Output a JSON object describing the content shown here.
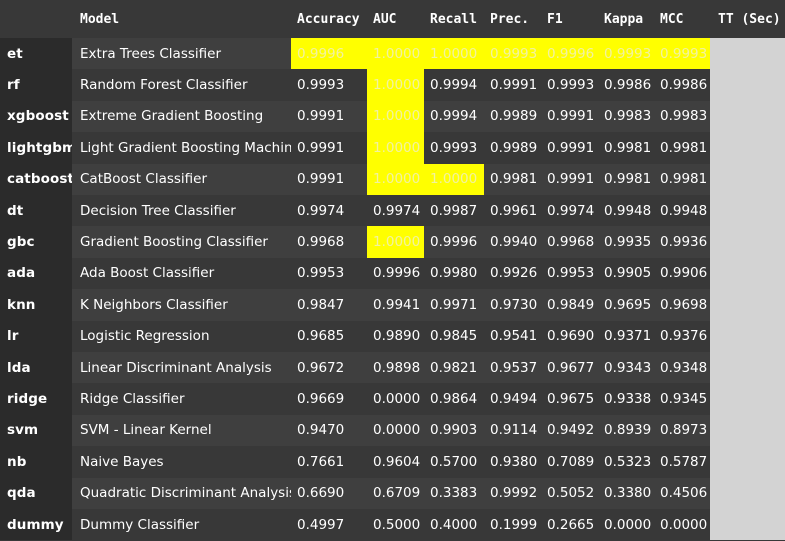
{
  "table": {
    "columns": [
      "Model",
      "Accuracy",
      "AUC",
      "Recall",
      "Prec.",
      "F1",
      "Kappa",
      "MCC",
      "TT (Sec)"
    ],
    "rows": [
      {
        "index": "et",
        "model": "Extra Trees Classifier",
        "values": [
          "0.9996",
          "1.0000",
          "1.0000",
          "0.9993",
          "0.9996",
          "0.9993",
          "0.9993"
        ],
        "highlight": [
          true,
          true,
          true,
          true,
          true,
          true,
          true
        ],
        "tt": ""
      },
      {
        "index": "rf",
        "model": "Random Forest Classifier",
        "values": [
          "0.9993",
          "1.0000",
          "0.9994",
          "0.9991",
          "0.9993",
          "0.9986",
          "0.9986"
        ],
        "highlight": [
          false,
          true,
          false,
          false,
          false,
          false,
          false
        ],
        "tt": ""
      },
      {
        "index": "xgboost",
        "model": "Extreme Gradient Boosting",
        "values": [
          "0.9991",
          "1.0000",
          "0.9994",
          "0.9989",
          "0.9991",
          "0.9983",
          "0.9983"
        ],
        "highlight": [
          false,
          true,
          false,
          false,
          false,
          false,
          false
        ],
        "tt": ""
      },
      {
        "index": "lightgbm",
        "model": "Light Gradient Boosting Machine",
        "values": [
          "0.9991",
          "1.0000",
          "0.9993",
          "0.9989",
          "0.9991",
          "0.9981",
          "0.9981"
        ],
        "highlight": [
          false,
          true,
          false,
          false,
          false,
          false,
          false
        ],
        "tt": ""
      },
      {
        "index": "catboost",
        "model": "CatBoost Classifier",
        "values": [
          "0.9991",
          "1.0000",
          "1.0000",
          "0.9981",
          "0.9991",
          "0.9981",
          "0.9981"
        ],
        "highlight": [
          false,
          true,
          true,
          false,
          false,
          false,
          false
        ],
        "tt": ""
      },
      {
        "index": "dt",
        "model": "Decision Tree Classifier",
        "values": [
          "0.9974",
          "0.9974",
          "0.9987",
          "0.9961",
          "0.9974",
          "0.9948",
          "0.9948"
        ],
        "highlight": [
          false,
          false,
          false,
          false,
          false,
          false,
          false
        ],
        "tt": ""
      },
      {
        "index": "gbc",
        "model": "Gradient Boosting Classifier",
        "values": [
          "0.9968",
          "1.0000",
          "0.9996",
          "0.9940",
          "0.9968",
          "0.9935",
          "0.9936"
        ],
        "highlight": [
          false,
          true,
          false,
          false,
          false,
          false,
          false
        ],
        "tt": ""
      },
      {
        "index": "ada",
        "model": "Ada Boost Classifier",
        "values": [
          "0.9953",
          "0.9996",
          "0.9980",
          "0.9926",
          "0.9953",
          "0.9905",
          "0.9906"
        ],
        "highlight": [
          false,
          false,
          false,
          false,
          false,
          false,
          false
        ],
        "tt": ""
      },
      {
        "index": "knn",
        "model": "K Neighbors Classifier",
        "values": [
          "0.9847",
          "0.9941",
          "0.9971",
          "0.9730",
          "0.9849",
          "0.9695",
          "0.9698"
        ],
        "highlight": [
          false,
          false,
          false,
          false,
          false,
          false,
          false
        ],
        "tt": ""
      },
      {
        "index": "lr",
        "model": "Logistic Regression",
        "values": [
          "0.9685",
          "0.9890",
          "0.9845",
          "0.9541",
          "0.9690",
          "0.9371",
          "0.9376"
        ],
        "highlight": [
          false,
          false,
          false,
          false,
          false,
          false,
          false
        ],
        "tt": ""
      },
      {
        "index": "lda",
        "model": "Linear Discriminant Analysis",
        "values": [
          "0.9672",
          "0.9898",
          "0.9821",
          "0.9537",
          "0.9677",
          "0.9343",
          "0.9348"
        ],
        "highlight": [
          false,
          false,
          false,
          false,
          false,
          false,
          false
        ],
        "tt": ""
      },
      {
        "index": "ridge",
        "model": "Ridge Classifier",
        "values": [
          "0.9669",
          "0.0000",
          "0.9864",
          "0.9494",
          "0.9675",
          "0.9338",
          "0.9345"
        ],
        "highlight": [
          false,
          false,
          false,
          false,
          false,
          false,
          false
        ],
        "tt": ""
      },
      {
        "index": "svm",
        "model": "SVM - Linear Kernel",
        "values": [
          "0.9470",
          "0.0000",
          "0.9903",
          "0.9114",
          "0.9492",
          "0.8939",
          "0.8973"
        ],
        "highlight": [
          false,
          false,
          false,
          false,
          false,
          false,
          false
        ],
        "tt": ""
      },
      {
        "index": "nb",
        "model": "Naive Bayes",
        "values": [
          "0.7661",
          "0.9604",
          "0.5700",
          "0.9380",
          "0.7089",
          "0.5323",
          "0.5787"
        ],
        "highlight": [
          false,
          false,
          false,
          false,
          false,
          false,
          false
        ],
        "tt": ""
      },
      {
        "index": "qda",
        "model": "Quadratic Discriminant Analysis",
        "values": [
          "0.6690",
          "0.6709",
          "0.3383",
          "0.9992",
          "0.5052",
          "0.3380",
          "0.4506"
        ],
        "highlight": [
          false,
          false,
          false,
          false,
          false,
          false,
          false
        ],
        "tt": ""
      },
      {
        "index": "dummy",
        "model": "Dummy Classifier",
        "values": [
          "0.4997",
          "0.5000",
          "0.4000",
          "0.1999",
          "0.2665",
          "0.0000",
          "0.0000"
        ],
        "highlight": [
          false,
          false,
          false,
          false,
          false,
          false,
          false
        ],
        "tt": ""
      }
    ]
  },
  "colors": {
    "highlight": "#ffff00",
    "tt_column": "#d3d3d3",
    "index_column": "#2b2b2b",
    "row_odd": "#383838",
    "row_even": "#3f3f3f",
    "text": "#ffffff"
  }
}
